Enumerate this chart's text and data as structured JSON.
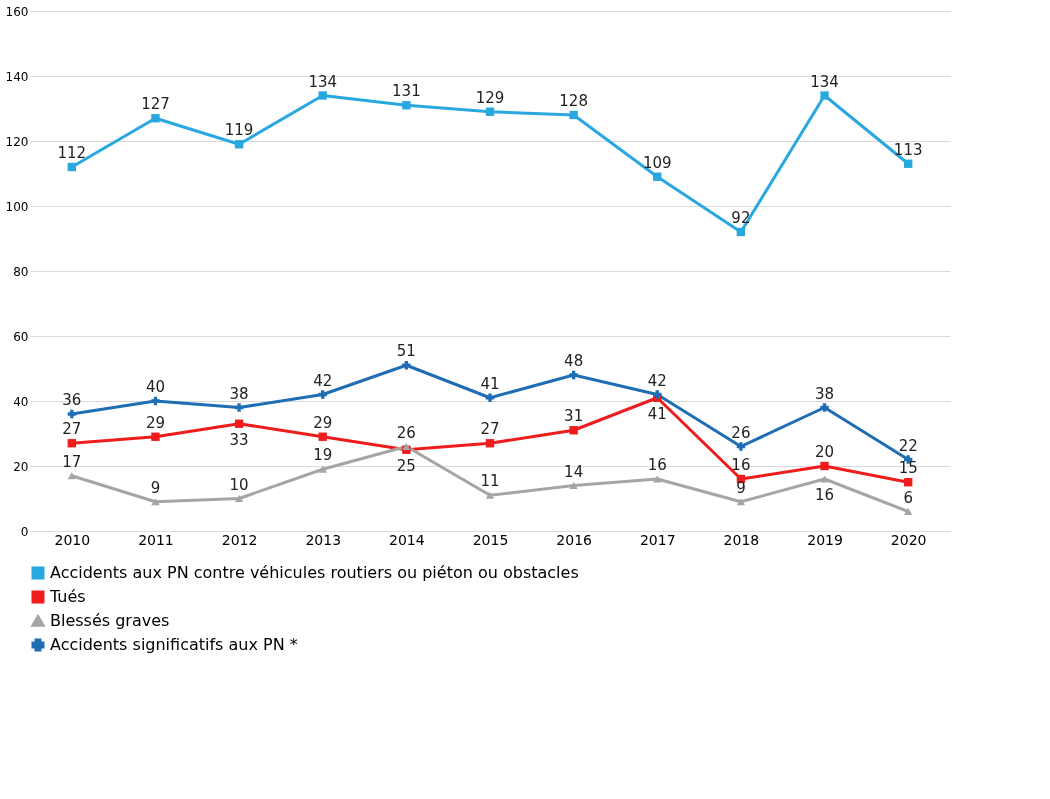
{
  "chart_data": {
    "type": "line",
    "categories": [
      "2010",
      "2011",
      "2012",
      "2013",
      "2014",
      "2015",
      "2016",
      "2017",
      "2018",
      "2019",
      "2020"
    ],
    "series": [
      {
        "name": "Accidents aux PN contre véhicules routiers ou piéton ou obstacles",
        "color": "#29a8e0",
        "marker": "square",
        "values": [
          112,
          127,
          119,
          134,
          131,
          129,
          128,
          109,
          92,
          134,
          113
        ]
      },
      {
        "name": "Tués",
        "color": "#ee1c1c",
        "marker": "square",
        "values": [
          27,
          29,
          33,
          29,
          25,
          27,
          31,
          41,
          16,
          20,
          15
        ]
      },
      {
        "name": "Blessés graves",
        "color": "#a5a5a5",
        "marker": "triangle",
        "values": [
          17,
          9,
          10,
          19,
          26,
          11,
          14,
          16,
          9,
          16,
          6
        ]
      },
      {
        "name": "Accidents significatifs aux PN *",
        "color": "#1f6db5",
        "marker": "cross",
        "values": [
          36,
          40,
          38,
          42,
          51,
          41,
          48,
          42,
          26,
          38,
          22
        ]
      }
    ],
    "ylim": [
      0,
      160
    ],
    "yticks": [
      0,
      20,
      40,
      60,
      80,
      100,
      120,
      140,
      160
    ],
    "grid": "y",
    "legend": "bottom",
    "data_labels": true,
    "line_style": "solid"
  }
}
